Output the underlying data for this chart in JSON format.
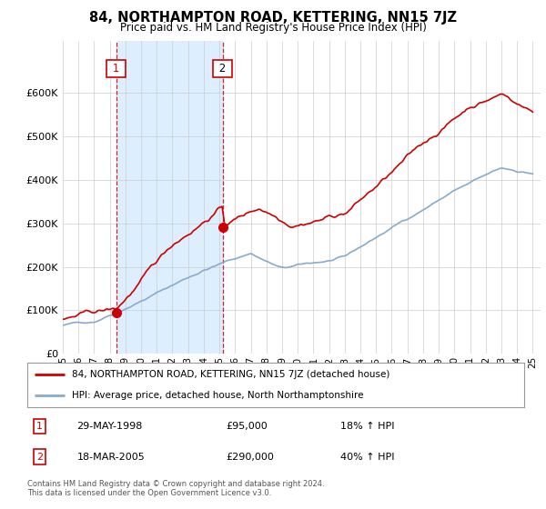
{
  "title": "84, NORTHAMPTON ROAD, KETTERING, NN15 7JZ",
  "subtitle": "Price paid vs. HM Land Registry's House Price Index (HPI)",
  "legend_line1": "84, NORTHAMPTON ROAD, KETTERING, NN15 7JZ (detached house)",
  "legend_line2": "HPI: Average price, detached house, North Northamptonshire",
  "table_rows": [
    {
      "num": "1",
      "date": "29-MAY-1998",
      "price": "£95,000",
      "hpi": "18% ↑ HPI"
    },
    {
      "num": "2",
      "date": "18-MAR-2005",
      "price": "£290,000",
      "hpi": "40% ↑ HPI"
    }
  ],
  "footnote1": "Contains HM Land Registry data © Crown copyright and database right 2024.",
  "footnote2": "This data is licensed under the Open Government Licence v3.0.",
  "red_color": "#cc0000",
  "blue_color": "#88aacc",
  "shade_color": "#ddeeff",
  "dashed_color": "#cc0000",
  "grid_color": "#cccccc",
  "bg_color": "#ffffff",
  "plot_bg_color": "#ffffff",
  "ylim": [
    0,
    700000
  ],
  "yticks": [
    0,
    100000,
    200000,
    300000,
    400000,
    500000,
    600000
  ],
  "sale1_year": 1998.41,
  "sale1_price": 95000,
  "sale2_year": 2005.21,
  "sale2_price": 290000
}
